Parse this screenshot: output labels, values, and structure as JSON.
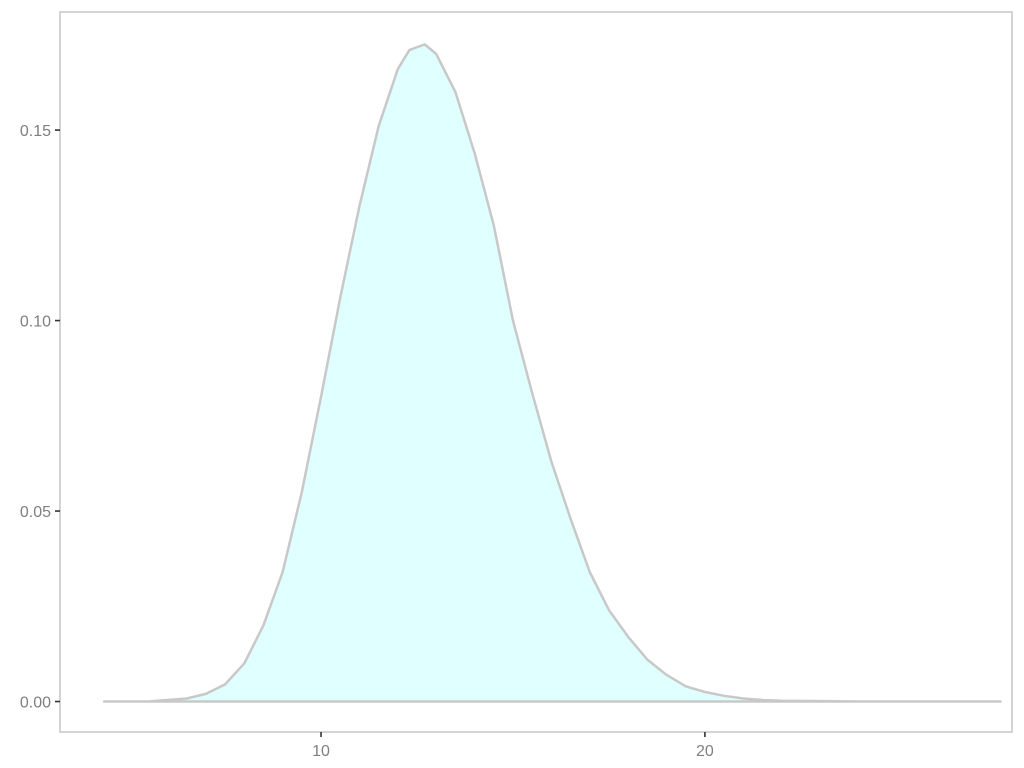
{
  "chart_data": {
    "type": "area",
    "title": "",
    "xlabel": "",
    "ylabel": "",
    "xlim": [
      3.2,
      28.0
    ],
    "ylim": [
      -0.008,
      0.181
    ],
    "x_ticks": [
      {
        "value": 10,
        "label": "10"
      },
      {
        "value": 20,
        "label": "20"
      }
    ],
    "y_ticks": [
      {
        "value": 0.0,
        "label": "0.00"
      },
      {
        "value": 0.05,
        "label": "0.05"
      },
      {
        "value": 0.1,
        "label": "0.10"
      },
      {
        "value": 0.15,
        "label": "0.15"
      }
    ],
    "grid": false,
    "legend": "none",
    "series": [
      {
        "x": [
          4.35,
          5.5,
          6.5,
          7.0,
          7.5,
          8.0,
          8.5,
          9.0,
          9.5,
          10.0,
          10.5,
          11.0,
          11.5,
          12.0,
          12.3,
          12.7,
          13.0,
          13.5,
          14.0,
          14.5,
          15.0,
          15.5,
          16.0,
          16.5,
          17.0,
          17.5,
          18.0,
          18.5,
          19.0,
          19.5,
          20.0,
          20.5,
          21.0,
          21.5,
          22.0,
          23.0,
          24.0,
          25.0,
          26.0,
          27.0,
          27.7
        ],
        "y": [
          0.0,
          0.0,
          0.0008,
          0.002,
          0.0045,
          0.01,
          0.02,
          0.034,
          0.055,
          0.08,
          0.106,
          0.13,
          0.151,
          0.166,
          0.171,
          0.1725,
          0.17,
          0.16,
          0.144,
          0.125,
          0.1,
          0.081,
          0.063,
          0.048,
          0.034,
          0.024,
          0.017,
          0.011,
          0.007,
          0.004,
          0.0025,
          0.0015,
          0.0008,
          0.0004,
          0.0002,
          0.0001,
          0.0,
          0.0,
          0.0,
          0.0,
          0.0
        ]
      }
    ],
    "colors": {
      "fill": "#e0ffff",
      "line": "#c8c8c8",
      "frame": "#c8c8c8",
      "tick_text": "#7f7f7f",
      "tick_mark": "#333333"
    }
  }
}
